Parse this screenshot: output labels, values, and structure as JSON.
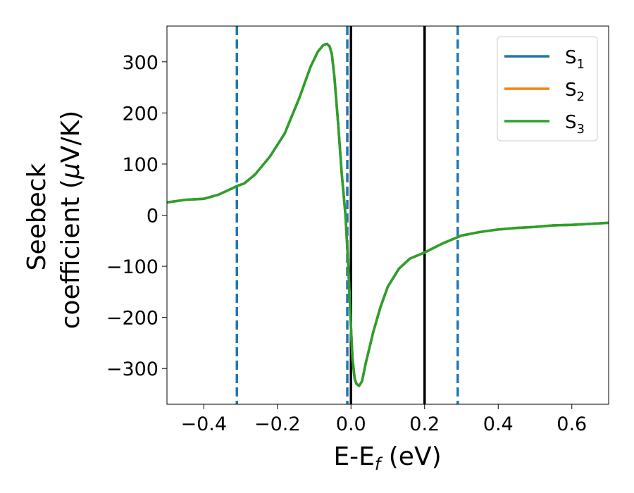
{
  "chart_data": {
    "type": "line",
    "xlabel": "E-E",
    "xlabel_sub": "f",
    "xlabel_unit": " (eV)",
    "ylabel_line1": "Seebeck",
    "ylabel_line2_a": "coefficient  (",
    "ylabel_line2_mu": "μ",
    "ylabel_line2_b": "V/K)",
    "xlim": [
      -0.5,
      0.7
    ],
    "ylim": [
      -370,
      370
    ],
    "x_ticks": [
      -0.4,
      -0.2,
      0.0,
      0.2,
      0.4,
      0.6
    ],
    "x_tick_labels": [
      "−0.4",
      "−0.2",
      "0.0",
      "0.2",
      "0.4",
      "0.6"
    ],
    "y_ticks": [
      300,
      200,
      100,
      0,
      -100,
      -200,
      -300
    ],
    "y_tick_labels": [
      "300",
      "200",
      "100",
      "0",
      "−100",
      "−200",
      "−300"
    ],
    "grid": false,
    "legend_position": "top-right",
    "series": [
      {
        "name": "S",
        "sub": "1",
        "color": "#1f77b4"
      },
      {
        "name": "S",
        "sub": "2",
        "color": "#ff7f0e"
      },
      {
        "name": "S",
        "sub": "3",
        "color": "#2ca02c"
      }
    ],
    "x": [
      -0.5,
      -0.45,
      -0.4,
      -0.36,
      -0.33,
      -0.31,
      -0.29,
      -0.26,
      -0.22,
      -0.18,
      -0.14,
      -0.11,
      -0.09,
      -0.075,
      -0.065,
      -0.058,
      -0.052,
      -0.045,
      -0.035,
      -0.025,
      -0.015,
      -0.008,
      -0.003,
      0.0,
      0.004,
      0.01,
      0.015,
      0.022,
      0.03,
      0.04,
      0.06,
      0.08,
      0.1,
      0.13,
      0.16,
      0.2,
      0.25,
      0.3,
      0.35,
      0.4,
      0.45,
      0.5,
      0.55,
      0.6,
      0.65,
      0.7
    ],
    "y": [
      25,
      30,
      32,
      40,
      50,
      57,
      62,
      80,
      115,
      160,
      230,
      290,
      320,
      333,
      335,
      330,
      315,
      270,
      180,
      80,
      0,
      -90,
      -170,
      -220,
      -280,
      -320,
      -330,
      -334,
      -325,
      -290,
      -230,
      -180,
      -140,
      -105,
      -85,
      -73,
      -55,
      -40,
      -33,
      -28,
      -25,
      -23,
      -20,
      -19,
      -17,
      -15
    ],
    "vlines": [
      {
        "x": -0.31,
        "style": "dashed",
        "color": "#1f77b4"
      },
      {
        "x": -0.01,
        "style": "dashed",
        "color": "#1f77b4"
      },
      {
        "x": 0.29,
        "style": "dashed",
        "color": "#1f77b4"
      },
      {
        "x": 0.0,
        "style": "solid",
        "color": "#000000"
      },
      {
        "x": 0.2,
        "style": "solid",
        "color": "#000000"
      }
    ]
  }
}
